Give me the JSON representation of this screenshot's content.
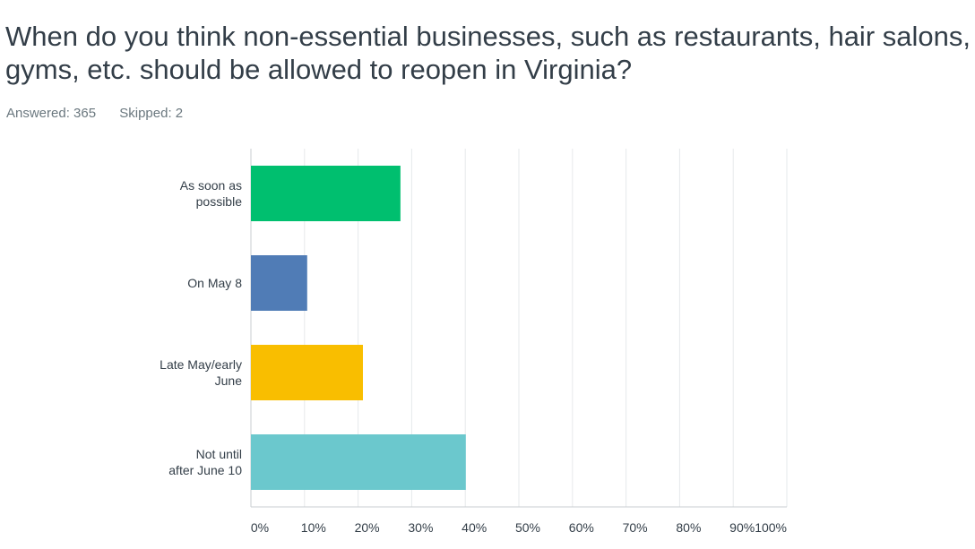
{
  "question": {
    "line1": "When do you think non-essential businesses, such as restaurants, hair salons,",
    "line2": "gyms, etc. should be allowed to reopen in Virginia?"
  },
  "meta": {
    "answered": "Answered: 365",
    "skipped": "Skipped: 2"
  },
  "chart_data": {
    "type": "bar",
    "orientation": "horizontal",
    "categories": [
      [
        "As soon as",
        "possible"
      ],
      [
        "On May 8"
      ],
      [
        "Late May/early",
        "June"
      ],
      [
        "Not until",
        "after June 10"
      ]
    ],
    "values": [
      27.9,
      10.5,
      20.9,
      40.1
    ],
    "colors": [
      "#00bf6f",
      "#507cb6",
      "#f9be00",
      "#6bc8cd"
    ],
    "xlim": [
      0,
      100
    ],
    "xticks": [
      "0%",
      "10%",
      "20%",
      "30%",
      "40%",
      "50%",
      "60%",
      "70%",
      "80%",
      "90%",
      "100%"
    ],
    "grid": true
  }
}
